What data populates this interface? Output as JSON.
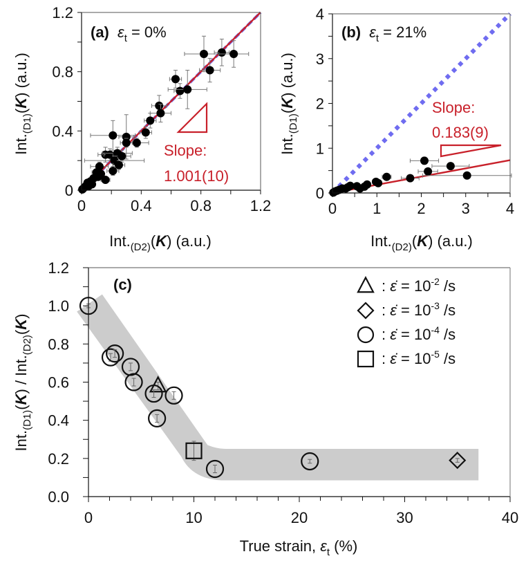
{
  "chart_data": [
    {
      "id": "a",
      "type": "scatter",
      "panel_label": "(a)",
      "title_var": "ε",
      "title_sub": "t",
      "title_value": " = 0%",
      "xlabel": {
        "prefix": "Int.",
        "sub": "(D2)",
        "open": "(",
        "bold": "K",
        "close": ") (a.u.)"
      },
      "ylabel": {
        "prefix": "Int.",
        "sub": "(D1)",
        "open": "(",
        "bold": "K",
        "close": ") (a.u.)"
      },
      "xlim": [
        0,
        1.2
      ],
      "ylim": [
        0,
        1.2
      ],
      "xticks": [
        0,
        0.4,
        0.8,
        1.2
      ],
      "xtick_labels": [
        "0",
        "0.4",
        "0.8",
        "1.2"
      ],
      "yticks": [
        0,
        0.4,
        0.8,
        1.2
      ],
      "ytick_labels": [
        "0",
        "0.4",
        "0.8",
        "1.2"
      ],
      "minor_step": 0.2,
      "reference_line": {
        "name": "y = x",
        "slope": 1.0,
        "color": "#6f6cf0",
        "style": "dashed"
      },
      "fit_line": {
        "slope": 1.001,
        "color": "#c8202a"
      },
      "slope_label": [
        "Slope:",
        "1.001(10)"
      ],
      "points": [
        {
          "x": 0.82,
          "y": 0.92,
          "xerr": 0.13,
          "yerr": 0.12
        },
        {
          "x": 0.94,
          "y": 0.93,
          "xerr": 0.05,
          "yerr": 0.09
        },
        {
          "x": 1.02,
          "y": 0.92,
          "xerr": 0.1,
          "yerr": 0.09
        },
        {
          "x": 0.86,
          "y": 0.81,
          "xerr": 0.07,
          "yerr": 0.08
        },
        {
          "x": 0.63,
          "y": 0.75,
          "xerr": 0.04,
          "yerr": 0.06
        },
        {
          "x": 0.66,
          "y": 0.67,
          "xerr": 0.04,
          "yerr": 0.05
        },
        {
          "x": 0.71,
          "y": 0.68,
          "xerr": 0.13,
          "yerr": 0.13
        },
        {
          "x": 0.52,
          "y": 0.57,
          "xerr": 0.05,
          "yerr": 0.07
        },
        {
          "x": 0.53,
          "y": 0.52,
          "xerr": 0.07,
          "yerr": 0.06
        },
        {
          "x": 0.46,
          "y": 0.47,
          "xerr": 0.04,
          "yerr": 0.05
        },
        {
          "x": 0.43,
          "y": 0.39,
          "xerr": 0.04,
          "yerr": 0.04
        },
        {
          "x": 0.37,
          "y": 0.32,
          "xerr": 0.08,
          "yerr": 0.03
        },
        {
          "x": 0.21,
          "y": 0.37,
          "xerr": 0.15,
          "yerr": 0.1
        },
        {
          "x": 0.3,
          "y": 0.36,
          "xerr": 0.05,
          "yerr": 0.15
        },
        {
          "x": 0.3,
          "y": 0.32,
          "xerr": 0.04,
          "yerr": 0.03
        },
        {
          "x": 0.16,
          "y": 0.24,
          "xerr": 0.05,
          "yerr": 0.05
        },
        {
          "x": 0.19,
          "y": 0.24,
          "xerr": 0.04,
          "yerr": 0.04
        },
        {
          "x": 0.24,
          "y": 0.25,
          "xerr": 0.1,
          "yerr": 0.04
        },
        {
          "x": 0.27,
          "y": 0.23,
          "xerr": 0.06,
          "yerr": 0.04
        },
        {
          "x": 0.22,
          "y": 0.2,
          "xerr": 0.2,
          "yerr": 0.03
        },
        {
          "x": 0.25,
          "y": 0.17,
          "xerr": 0.04,
          "yerr": 0.03
        },
        {
          "x": 0.21,
          "y": 0.13,
          "xerr": 0.04,
          "yerr": 0.03
        },
        {
          "x": 0.12,
          "y": 0.16,
          "xerr": 0.06,
          "yerr": 0.03
        },
        {
          "x": 0.1,
          "y": 0.12,
          "xerr": 0.03,
          "yerr": 0.02
        },
        {
          "x": 0.16,
          "y": 0.07,
          "xerr": 0.03,
          "yerr": 0.02
        },
        {
          "x": 0.08,
          "y": 0.08,
          "xerr": 0.02,
          "yerr": 0.02
        },
        {
          "x": 0.11,
          "y": 0.09,
          "xerr": 0.02,
          "yerr": 0.02
        },
        {
          "x": 0.06,
          "y": 0.06,
          "xerr": 0.02,
          "yerr": 0.02
        },
        {
          "x": 0.04,
          "y": 0.05,
          "xerr": 0.01,
          "yerr": 0.01
        },
        {
          "x": 0.05,
          "y": 0.03,
          "xerr": 0.01,
          "yerr": 0.01
        },
        {
          "x": 0.03,
          "y": 0.03,
          "xerr": 0.01,
          "yerr": 0.01
        },
        {
          "x": 0.02,
          "y": 0.02,
          "xerr": 0.01,
          "yerr": 0.01
        },
        {
          "x": 0.01,
          "y": 0.01,
          "xerr": 0.01,
          "yerr": 0.01
        },
        {
          "x": 0.005,
          "y": 0.005,
          "xerr": 0.0,
          "yerr": 0.0
        },
        {
          "x": 0.07,
          "y": 0.04,
          "xerr": 0.01,
          "yerr": 0.01
        },
        {
          "x": 0.13,
          "y": 0.11,
          "xerr": 0.02,
          "yerr": 0.02
        }
      ]
    },
    {
      "id": "b",
      "type": "scatter",
      "panel_label": "(b)",
      "title_var": "ε",
      "title_sub": "t",
      "title_value": " = 21%",
      "xlabel": {
        "prefix": "Int.",
        "sub": "(D2)",
        "open": "(",
        "bold": "K",
        "close": ") (a.u.)"
      },
      "ylabel": {
        "prefix": "Int.",
        "sub": "(D1)",
        "open": "(",
        "bold": "K",
        "close": ") (a.u.)"
      },
      "xlim": [
        0,
        4
      ],
      "ylim": [
        0,
        4
      ],
      "xticks": [
        0,
        1,
        2,
        3,
        4
      ],
      "xtick_labels": [
        "0",
        "1",
        "2",
        "3",
        "4"
      ],
      "yticks": [
        0,
        1,
        2,
        3,
        4
      ],
      "ytick_labels": [
        "0",
        "1",
        "2",
        "3",
        "4"
      ],
      "minor_step": 0.5,
      "reference_line": {
        "name": "y = x",
        "slope": 1.0,
        "color": "#6f6cf0",
        "style": "dotted"
      },
      "fit_line": {
        "slope": 0.183,
        "color": "#c8202a"
      },
      "slope_label": [
        "Slope:",
        "0.183(9)"
      ],
      "points": [
        {
          "x": 2.07,
          "y": 0.72,
          "xerr": 0.32,
          "yerr": 0.08
        },
        {
          "x": 2.66,
          "y": 0.6,
          "xerr": 0.42,
          "yerr": 0.03
        },
        {
          "x": 2.15,
          "y": 0.48,
          "xerr": 0.22,
          "yerr": 0.03
        },
        {
          "x": 3.03,
          "y": 0.39,
          "xerr": 1.0,
          "yerr": 0.02
        },
        {
          "x": 1.75,
          "y": 0.33,
          "xerr": 0.2,
          "yerr": 0.03
        },
        {
          "x": 1.22,
          "y": 0.36,
          "xerr": 0.1,
          "yerr": 0.03
        },
        {
          "x": 0.98,
          "y": 0.25,
          "xerr": 0.08,
          "yerr": 0.03
        },
        {
          "x": 1.03,
          "y": 0.22,
          "xerr": 0.06,
          "yerr": 0.03
        },
        {
          "x": 0.78,
          "y": 0.19,
          "xerr": 0.05,
          "yerr": 0.02
        },
        {
          "x": 0.72,
          "y": 0.14,
          "xerr": 0.05,
          "yerr": 0.02
        },
        {
          "x": 0.55,
          "y": 0.15,
          "xerr": 0.04,
          "yerr": 0.02
        },
        {
          "x": 0.62,
          "y": 0.1,
          "xerr": 0.04,
          "yerr": 0.02
        },
        {
          "x": 0.4,
          "y": 0.16,
          "xerr": 0.03,
          "yerr": 0.02
        },
        {
          "x": 0.35,
          "y": 0.13,
          "xerr": 0.03,
          "yerr": 0.02
        },
        {
          "x": 0.3,
          "y": 0.1,
          "xerr": 0.02,
          "yerr": 0.02
        },
        {
          "x": 0.22,
          "y": 0.1,
          "xerr": 0.02,
          "yerr": 0.02
        },
        {
          "x": 0.15,
          "y": 0.07,
          "xerr": 0.02,
          "yerr": 0.01
        },
        {
          "x": 0.1,
          "y": 0.05,
          "xerr": 0.01,
          "yerr": 0.01
        },
        {
          "x": 0.05,
          "y": 0.03,
          "xerr": 0.01,
          "yerr": 0.01
        },
        {
          "x": 0.02,
          "y": 0.01,
          "xerr": 0.0,
          "yerr": 0.0
        }
      ]
    },
    {
      "id": "c",
      "type": "scatter",
      "panel_label": "(c)",
      "xlabel": {
        "text": "True strain, ",
        "var": "ε",
        "sub": "t",
        "unit": " (%)"
      },
      "ylabel": {
        "prefix": "Int.",
        "sub1": "(D1)",
        "bold1": "K",
        "mid": " / Int.",
        "sub2": "(D2)",
        "bold2": "K"
      },
      "xlim": [
        0,
        40
      ],
      "ylim": [
        0,
        1.2
      ],
      "xticks": [
        0,
        10,
        20,
        30,
        40
      ],
      "xtick_labels": [
        "0",
        "10",
        "20",
        "30",
        "40"
      ],
      "yticks": [
        0,
        0.2,
        0.4,
        0.6,
        0.8,
        1.0,
        1.2
      ],
      "ytick_labels": [
        "0.0",
        "0.2",
        "0.4",
        "0.6",
        "0.8",
        "1.0",
        "1.2"
      ],
      "x_minor_step": 2,
      "y_minor_step": 0.1,
      "band_color": "#cccccc",
      "band": {
        "upper": [
          [
            1.3,
            1.06
          ],
          [
            11.3,
            0.27
          ],
          [
            13,
            0.25
          ],
          [
            37,
            0.25
          ]
        ],
        "lower": [
          [
            -1.1,
            0.97
          ],
          [
            8.8,
            0.21
          ],
          [
            10.5,
            0.11
          ],
          [
            13,
            0.085
          ],
          [
            37,
            0.085
          ]
        ]
      },
      "legend": [
        {
          "marker": "triangle",
          "exp": "-2",
          "label_pre": " : ",
          "var": "ε̇",
          "eq": " = 10",
          "unit": " /s"
        },
        {
          "marker": "diamond",
          "exp": "-3",
          "label_pre": " : ",
          "var": "ε̇",
          "eq": " = 10",
          "unit": " /s"
        },
        {
          "marker": "circle",
          "exp": "-4",
          "label_pre": " : ",
          "var": "ε̇",
          "eq": " = 10",
          "unit": " /s"
        },
        {
          "marker": "square",
          "exp": "-5",
          "label_pre": " : ",
          "var": "ε̇",
          "eq": " = 10",
          "unit": " /s"
        }
      ],
      "legend_position": "top-right",
      "points": [
        {
          "x": 0.0,
          "y": 1.0,
          "yerr": 0.01,
          "marker": "circle"
        },
        {
          "x": 2.1,
          "y": 0.73,
          "yerr": 0.02,
          "marker": "circle"
        },
        {
          "x": 2.5,
          "y": 0.75,
          "yerr": 0.02,
          "marker": "circle"
        },
        {
          "x": 4.0,
          "y": 0.68,
          "yerr": 0.02,
          "marker": "circle"
        },
        {
          "x": 4.3,
          "y": 0.6,
          "yerr": 0.02,
          "marker": "circle"
        },
        {
          "x": 6.6,
          "y": 0.58,
          "yerr": 0.02,
          "marker": "triangle"
        },
        {
          "x": 6.2,
          "y": 0.54,
          "yerr": 0.02,
          "marker": "circle"
        },
        {
          "x": 8.1,
          "y": 0.53,
          "yerr": 0.02,
          "marker": "circle"
        },
        {
          "x": 6.5,
          "y": 0.41,
          "yerr": 0.02,
          "marker": "circle"
        },
        {
          "x": 10.0,
          "y": 0.24,
          "yerr": 0.05,
          "marker": "square"
        },
        {
          "x": 12.0,
          "y": 0.145,
          "yerr": 0.02,
          "marker": "circle"
        },
        {
          "x": 21.0,
          "y": 0.185,
          "yerr": 0.01,
          "marker": "circle"
        },
        {
          "x": 35.0,
          "y": 0.19,
          "yerr": 0.01,
          "marker": "diamond"
        }
      ]
    }
  ]
}
